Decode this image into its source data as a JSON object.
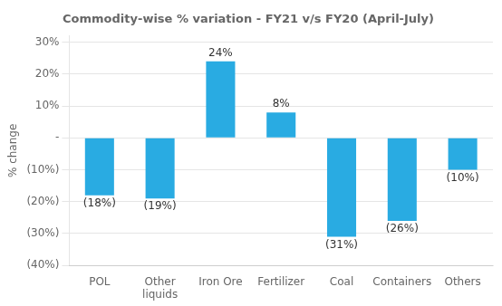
{
  "chart_data": {
    "type": "bar",
    "title": "Commodity-wise % variation - FY21 v/s FY20 (April-July)",
    "categories": [
      "POL",
      "Other\nliquids",
      "Iron Ore",
      "Fertilizer",
      "Coal",
      "Containers",
      "Others"
    ],
    "values": [
      -18,
      -19,
      24,
      8,
      -31,
      -26,
      -10
    ],
    "value_labels": [
      "(18%)",
      "(19%)",
      "24%",
      "8%",
      "(31%)",
      "(26%)",
      "(10%)"
    ],
    "data_labels": true,
    "color": "#29ABE2",
    "ylabel": "% change",
    "ylim": [
      -40,
      32
    ],
    "yticks": [
      {
        "value": -40,
        "label": "(40%)"
      },
      {
        "value": -30,
        "label": "(30%)"
      },
      {
        "value": -20,
        "label": "(20%)"
      },
      {
        "value": -10,
        "label": "(10%)"
      },
      {
        "value": 0,
        "label": "-"
      },
      {
        "value": 10,
        "label": "10%"
      },
      {
        "value": 20,
        "label": "20%"
      },
      {
        "value": 30,
        "label": "30%"
      }
    ],
    "grid": true
  }
}
